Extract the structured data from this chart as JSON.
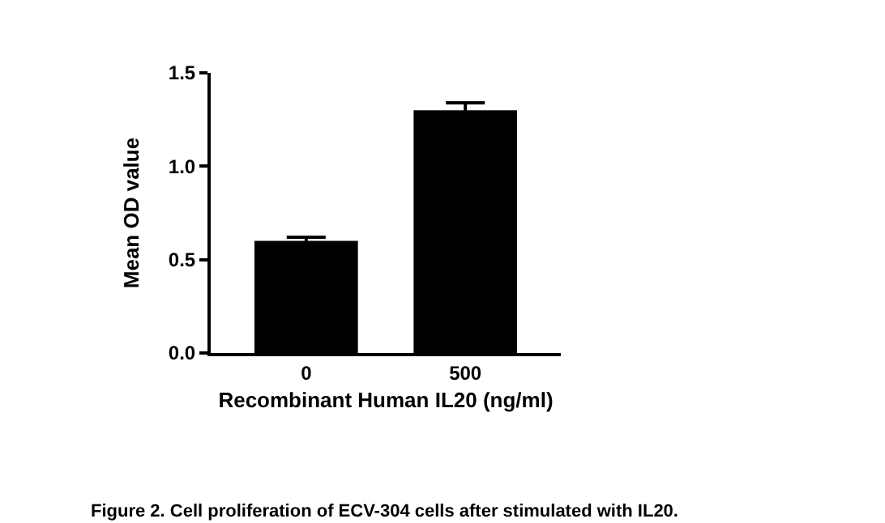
{
  "chart_data": {
    "type": "bar",
    "categories": [
      "0",
      "500"
    ],
    "values": [
      0.6,
      1.3
    ],
    "errors": [
      0.02,
      0.04
    ],
    "color": "#000000",
    "xlabel": "Recombinant Human IL20 (ng/ml)",
    "ylabel": "Mean OD value",
    "ylim": [
      0,
      1.5
    ],
    "yticks": [
      {
        "value": 0,
        "label": "0.0"
      },
      {
        "value": 0.5,
        "label": "0.5"
      },
      {
        "value": 1,
        "label": "1.0"
      },
      {
        "value": 1.5,
        "label": "1.5"
      }
    ],
    "annotations": [
      "Figure 2. Cell proliferation of ECV-304 cells after stimulated with IL20."
    ]
  }
}
